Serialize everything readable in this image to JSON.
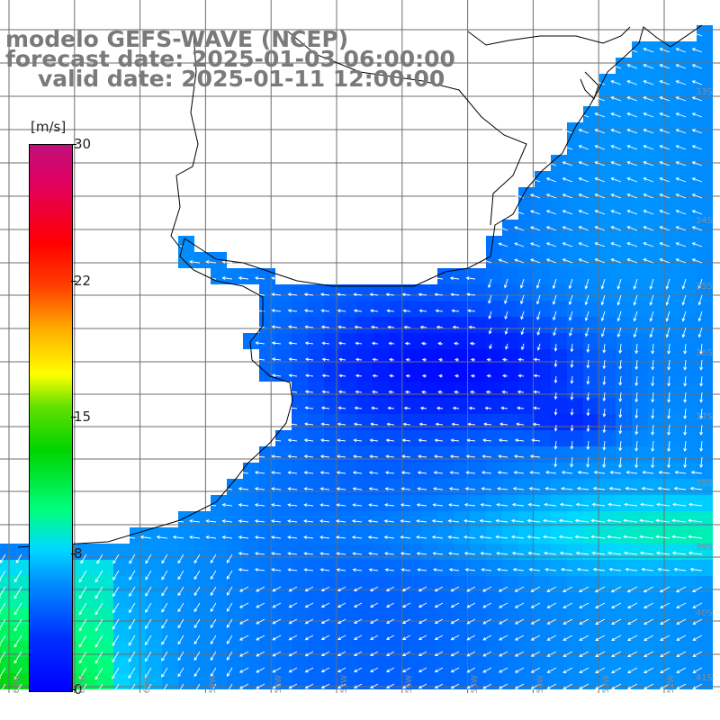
{
  "header": {
    "model_line": "modelo GEFS-WAVE (NCEP)",
    "forecast_line": "forecast date: 2025-01-03 06:00:00",
    "valid_line": "valid date: 2025-01-11 12:00:00"
  },
  "colorbar": {
    "units": "[m/s]",
    "ticks": [
      "30",
      "22",
      "15",
      "8",
      "0"
    ],
    "tick_values": [
      30,
      22,
      15,
      8,
      0
    ],
    "range": [
      0,
      30
    ],
    "colors": [
      "#0000ff",
      "#00d8ff",
      "#00ff80",
      "#00d400",
      "#ffff00",
      "#ff4000",
      "#ff0000",
      "#c0107a"
    ]
  },
  "grid": {
    "lat_labels": [
      "33S",
      "34S",
      "35S",
      "36S",
      "37S",
      "38S",
      "39S",
      "40S",
      "41S"
    ],
    "lon_labels": [
      "62W",
      "61W",
      "60W",
      "59W",
      "58W",
      "57W",
      "56W",
      "55W",
      "54W",
      "53W",
      "52W"
    ],
    "color": "#6e6e6e"
  },
  "map": {
    "land_color": "#ffffff",
    "coast_color": "#000000",
    "arrow_color": "#ffffff",
    "field": "wind speed with direction arrows"
  }
}
